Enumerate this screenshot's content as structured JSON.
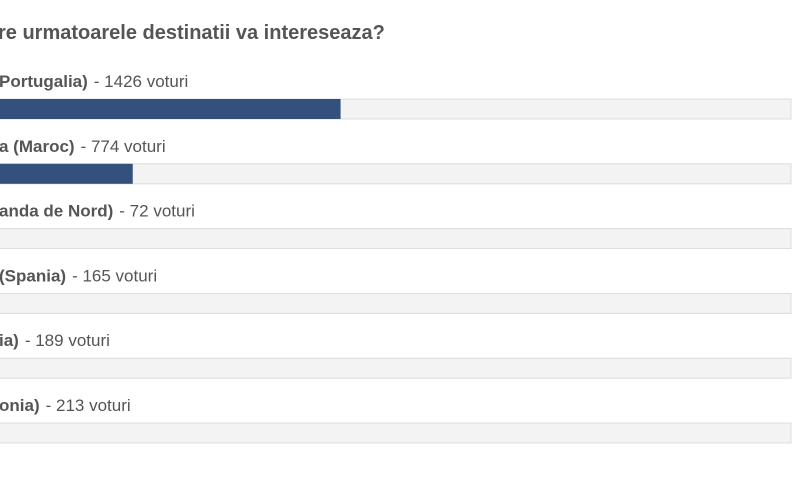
{
  "poll": {
    "title": "re urmatoarele destinatii va intereseaza?",
    "options": [
      {
        "name": "Portugalia)",
        "votes_text": "- 1426 voturi",
        "votes": 1426
      },
      {
        "name": "a (Maroc)",
        "votes_text": "- 774 voturi",
        "votes": 774
      },
      {
        "name": "anda de Nord)",
        "votes_text": "- 72 voturi",
        "votes": 72
      },
      {
        "name": "(Spania)",
        "votes_text": "- 165 voturi",
        "votes": 165
      },
      {
        "name": "ia)",
        "votes_text": "- 189 voturi",
        "votes": 189
      },
      {
        "name": "onia)",
        "votes_text": "- 213 voturi",
        "votes": 213
      }
    ],
    "bar_color": "#34517d"
  }
}
